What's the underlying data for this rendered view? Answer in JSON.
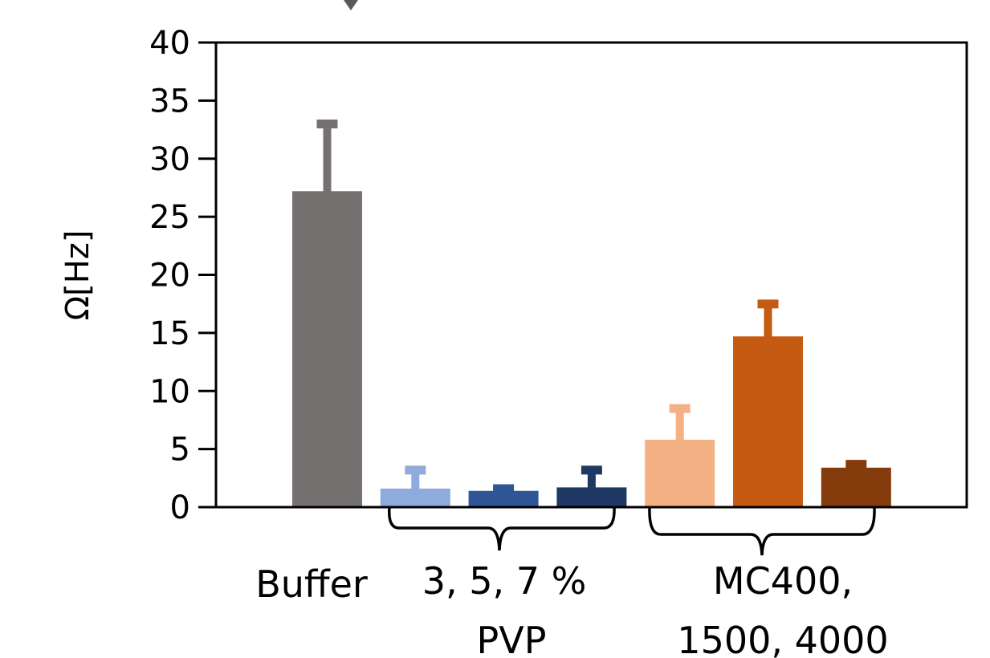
{
  "chart_data": {
    "type": "bar",
    "ylabel": "Ω[Hz]",
    "ylim": [
      0,
      40
    ],
    "yticks": [
      0,
      5,
      10,
      15,
      20,
      25,
      30,
      35,
      40
    ],
    "grid": false,
    "legend": "none",
    "bars": [
      {
        "value": 27.2,
        "error": 6.1,
        "color": "#767171"
      },
      {
        "value": 1.6,
        "error": 1.9,
        "color": "#8faadc"
      },
      {
        "value": 1.4,
        "error": 0.5,
        "color": "#2f5597"
      },
      {
        "value": 1.7,
        "error": 1.8,
        "color": "#203864"
      },
      {
        "value": 5.8,
        "error": 3.0,
        "color": "#f4b183"
      },
      {
        "value": 14.7,
        "error": 3.1,
        "color": "#c55a11"
      },
      {
        "value": 3.4,
        "error": 0.6,
        "color": "#843c0c"
      }
    ],
    "group_labels": [
      {
        "lines": [
          "Buffer"
        ]
      },
      {
        "lines": [
          "3, 5, 7 %",
          "PVP"
        ]
      },
      {
        "lines": [
          "MC400,",
          "1500, 4000"
        ]
      }
    ]
  }
}
